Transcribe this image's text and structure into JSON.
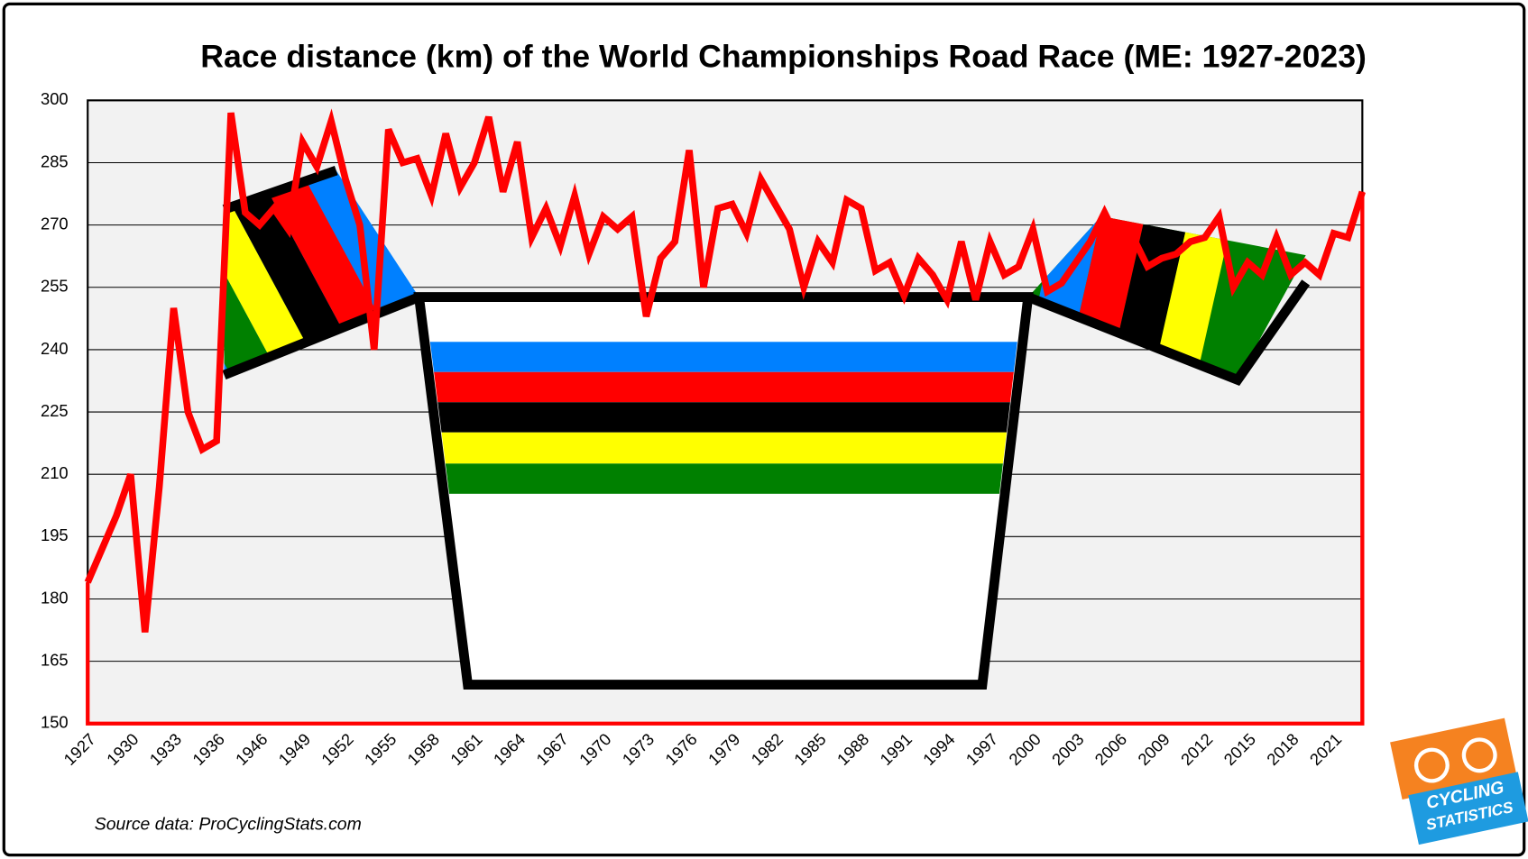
{
  "chart_data": {
    "type": "line",
    "title": "Race distance (km) of the World Championships Road Race (ME: 1927-2023)",
    "source": "Source data: ProCyclingStats.com",
    "logo_text": [
      "CYCLING",
      "STATISTICS"
    ],
    "categories": [
      "1927",
      null,
      null,
      "1930",
      null,
      null,
      "1933",
      null,
      null,
      "1936",
      null,
      null,
      "1946",
      null,
      null,
      "1949",
      null,
      null,
      "1952",
      null,
      null,
      "1955",
      null,
      null,
      "1958",
      null,
      null,
      "1961",
      null,
      null,
      "1964",
      null,
      null,
      "1967",
      null,
      null,
      "1970",
      null,
      null,
      "1973",
      null,
      null,
      "1976",
      null,
      null,
      "1979",
      null,
      null,
      "1982",
      null,
      null,
      "1985",
      null,
      null,
      "1988",
      null,
      null,
      "1991",
      null,
      null,
      "1994",
      null,
      null,
      "1997",
      null,
      null,
      "2000",
      null,
      null,
      "2003",
      null,
      null,
      "2006",
      null,
      null,
      "2009",
      null,
      null,
      "2012",
      null,
      null,
      "2015",
      null,
      null,
      "2018",
      null,
      null,
      "2021",
      null,
      null
    ],
    "values": [
      184,
      192,
      200,
      210,
      172,
      207,
      250,
      225,
      216,
      218,
      297,
      273,
      270,
      274,
      269,
      290,
      284,
      295,
      281,
      270,
      240,
      293,
      285,
      286,
      277,
      292,
      279,
      285,
      296,
      278,
      290,
      267,
      274,
      265,
      277,
      263,
      272,
      269,
      272,
      248,
      262,
      266,
      288,
      255,
      274,
      275,
      268,
      281,
      275,
      269,
      255,
      266,
      261,
      276,
      274,
      259,
      261,
      253,
      262,
      258,
      252,
      266,
      252,
      266,
      258,
      260,
      269,
      254,
      256,
      261,
      266,
      273,
      266,
      267,
      260,
      262,
      263,
      266,
      267,
      272,
      255,
      261,
      258,
      267,
      258,
      261,
      258,
      268,
      267,
      278
    ],
    "color": "#ff0000",
    "ylim": [
      150,
      300
    ],
    "yticks": [
      150,
      165,
      180,
      195,
      210,
      225,
      240,
      255,
      270,
      285,
      300
    ],
    "grid": true
  }
}
